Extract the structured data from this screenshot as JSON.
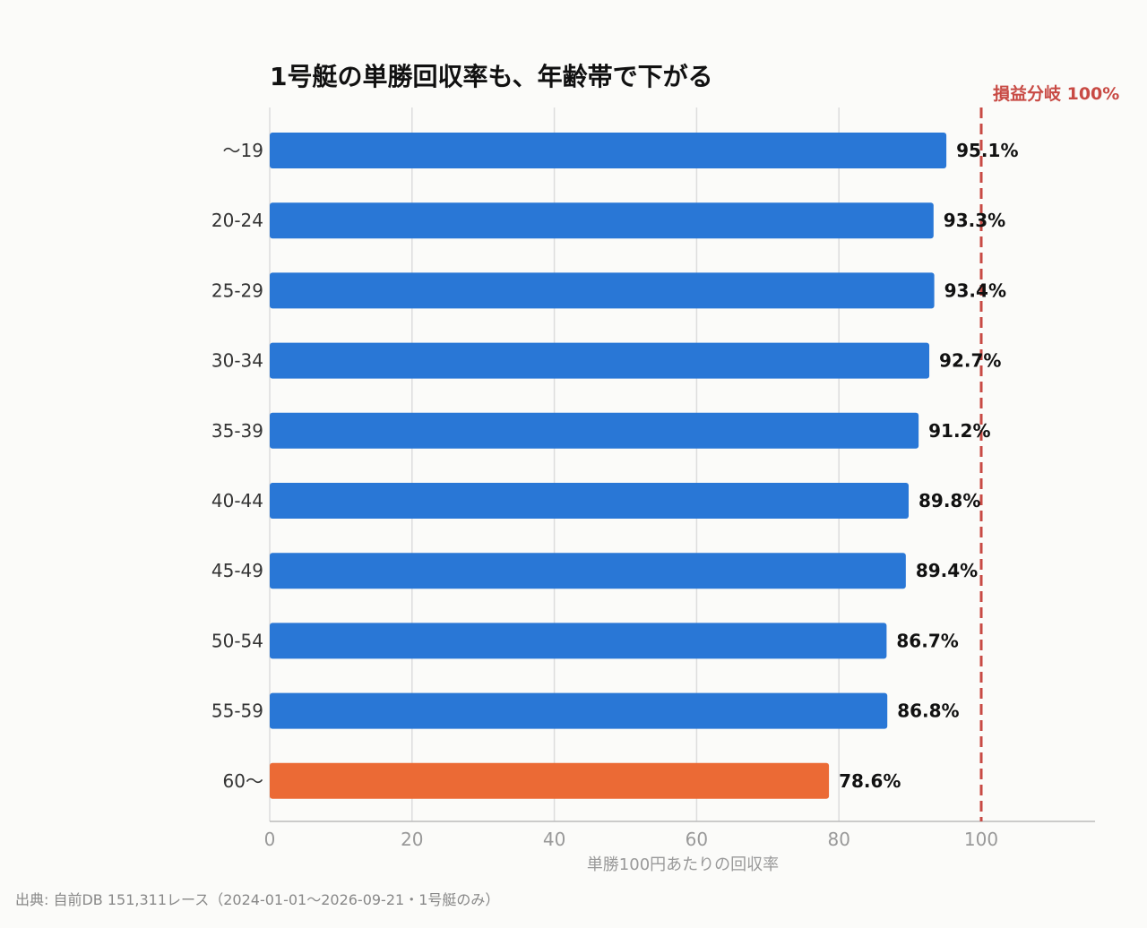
{
  "chart_data": {
    "type": "bar",
    "orientation": "horizontal",
    "title": "1号艇の単勝回収率も、年齢帯で下がる",
    "xlabel": "単勝100円あたりの回収率",
    "ylabel": "",
    "xlim": [
      0,
      116
    ],
    "xticks": [
      0,
      20,
      40,
      60,
      80,
      100
    ],
    "grid": true,
    "legend": "none",
    "categories": [
      "〜19",
      "20-24",
      "25-29",
      "30-34",
      "35-39",
      "40-44",
      "45-49",
      "50-54",
      "55-59",
      "60〜"
    ],
    "values": [
      95.1,
      93.3,
      93.4,
      92.7,
      91.2,
      89.8,
      89.4,
      86.7,
      86.8,
      78.6
    ],
    "value_labels": [
      "95.1%",
      "93.3%",
      "93.4%",
      "92.7%",
      "91.2%",
      "89.8%",
      "89.4%",
      "86.7%",
      "86.8%",
      "78.6%"
    ],
    "highlight_index": 9,
    "colors": {
      "bar": "#2977d6",
      "highlight": "#eb6a35",
      "reference": "#c84a44",
      "grid": "#dddddd",
      "axis": "#bbbbbb"
    },
    "reference_line": {
      "value": 100,
      "label": "損益分岐 100%",
      "style": "dashed"
    }
  },
  "source_note": "出典: 自前DB 151,311レース（2024-01-01〜2026-09-21・1号艇のみ）"
}
